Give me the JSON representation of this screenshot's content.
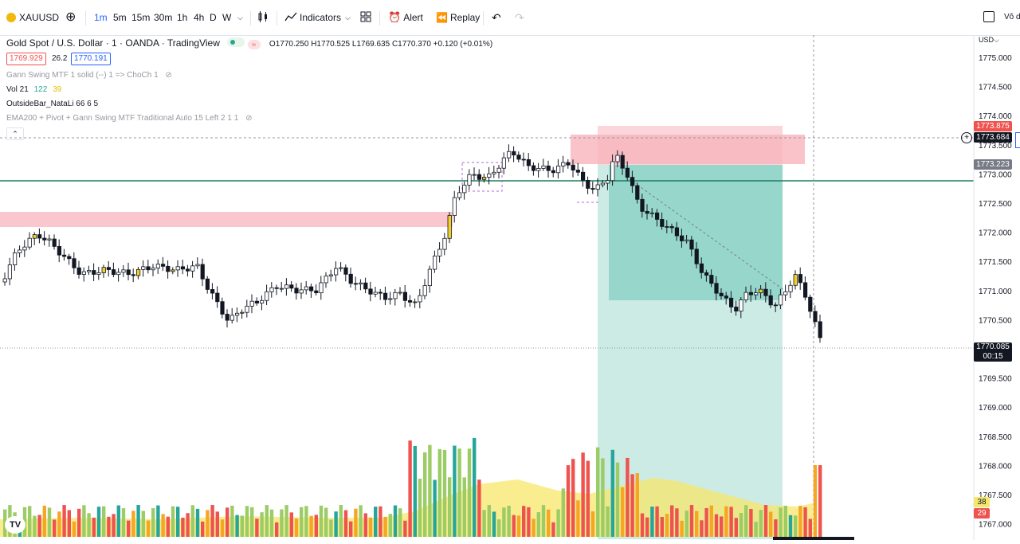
{
  "toolbar": {
    "symbol": "XAUUSD",
    "intervals": [
      "1m",
      "5m",
      "15m",
      "30m",
      "1h",
      "4h",
      "D",
      "W"
    ],
    "active_interval": "1m",
    "indicators_label": "Indicators",
    "alert_label": "Alert",
    "replay_label": "Replay",
    "right_text": "Vô d"
  },
  "legend": {
    "title": "Gold Spot / U.S. Dollar · 1 · OANDA · TradingView",
    "ohlc": "O1770.250 H1770.525 L1769.635 C1770.370 +0.120 (+0.01%)",
    "bid": "1769.929",
    "spread": "26.2",
    "ask": "1770.191",
    "ind1": "Gann Swing MTF 1 solid (--) 1 => ChoCh 1",
    "ind2_name": "Vol 21",
    "ind2_v1": "122",
    "ind2_v2": "39",
    "ind3": "OutsideBar_NataLi 66 6 5",
    "ind4": "EMA200 + Pivot + Gann Swing MTF Traditional Auto 15 Left 2 1 1"
  },
  "price_axis": {
    "currency": "USD",
    "ticks": [
      "1775.000",
      "1774.500",
      "1774.000",
      "1773.500",
      "1773.000",
      "1772.500",
      "1772.000",
      "1771.500",
      "1771.000",
      "1770.500",
      "1770.000",
      "1769.500",
      "1769.000",
      "1768.500",
      "1768.000",
      "1767.500",
      "1767.000"
    ],
    "tag_red": "1773.875",
    "tag_dark": "1773.684",
    "tag_grey": "1773.223",
    "tag_last": "1770.085",
    "tag_timer": "00:15",
    "vol_yellow": "38",
    "vol_red": "29"
  },
  "colors": {
    "up": "#26a69a",
    "down": "#ef5350",
    "accent": "#2962ff"
  },
  "logo_text": "TV"
}
